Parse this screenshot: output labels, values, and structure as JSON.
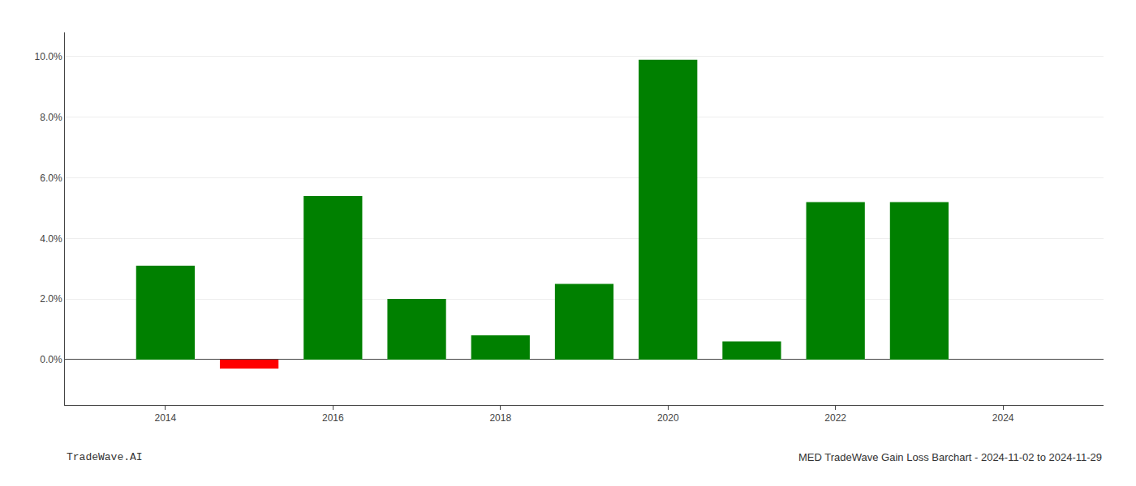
{
  "chart_data": {
    "type": "bar",
    "x": [
      2014,
      2015,
      2016,
      2017,
      2018,
      2019,
      2020,
      2021,
      2022,
      2023
    ],
    "values": [
      0.031,
      -0.003,
      0.054,
      0.02,
      0.008,
      0.025,
      0.099,
      0.006,
      0.052,
      0.052
    ],
    "colors": [
      "#008000",
      "#ff0000",
      "#008000",
      "#008000",
      "#008000",
      "#008000",
      "#008000",
      "#008000",
      "#008000",
      "#008000"
    ],
    "xlim": [
      2012.8,
      2025.2
    ],
    "xticks": [
      2014,
      2016,
      2018,
      2020,
      2022,
      2024
    ],
    "ylim": [
      -0.015,
      0.108
    ],
    "yticks": [
      {
        "value": 0.0,
        "label": "0.0%"
      },
      {
        "value": 0.02,
        "label": "2.0%"
      },
      {
        "value": 0.04,
        "label": "4.0%"
      },
      {
        "value": 0.06,
        "label": "6.0%"
      },
      {
        "value": 0.08,
        "label": "8.0%"
      },
      {
        "value": 0.1,
        "label": "10.0%"
      }
    ],
    "grid": true,
    "annotations": [
      "TradeWave.AI",
      "MED TradeWave Gain Loss Barchart - 2024-11-02 to 2024-11-29"
    ]
  }
}
